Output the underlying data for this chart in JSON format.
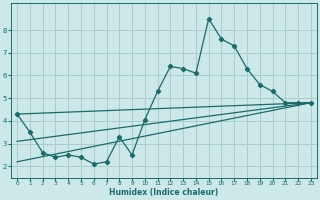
{
  "xlabel": "Humidex (Indice chaleur)",
  "bg_color": "#cce8e8",
  "grid_color": "#aacccc",
  "line_color": "#1a6b6b",
  "xlim": [
    -0.5,
    23.5
  ],
  "ylim": [
    1.5,
    9.2
  ],
  "yticks": [
    2,
    3,
    4,
    5,
    6,
    7,
    8
  ],
  "xticks": [
    0,
    1,
    2,
    3,
    4,
    5,
    6,
    7,
    8,
    9,
    10,
    11,
    12,
    13,
    14,
    15,
    16,
    17,
    18,
    19,
    20,
    21,
    22,
    23
  ],
  "series1_x": [
    0,
    1,
    2,
    3,
    4,
    5,
    6,
    7,
    8,
    9,
    10,
    11,
    12,
    13,
    14,
    15,
    16,
    17,
    18,
    19,
    20,
    21,
    22,
    23
  ],
  "series1_y": [
    4.3,
    3.5,
    2.6,
    2.4,
    2.5,
    2.4,
    2.1,
    2.2,
    3.3,
    2.5,
    4.05,
    5.3,
    6.4,
    6.3,
    6.1,
    8.5,
    7.6,
    7.3,
    6.3,
    5.6,
    5.3,
    4.8,
    4.8,
    4.8
  ],
  "trend1_x": [
    0,
    23
  ],
  "trend1_y": [
    4.3,
    4.8
  ],
  "trend2_x": [
    0,
    23
  ],
  "trend2_y": [
    3.1,
    4.8
  ],
  "trend3_x": [
    0,
    23
  ],
  "trend3_y": [
    2.2,
    4.8
  ]
}
